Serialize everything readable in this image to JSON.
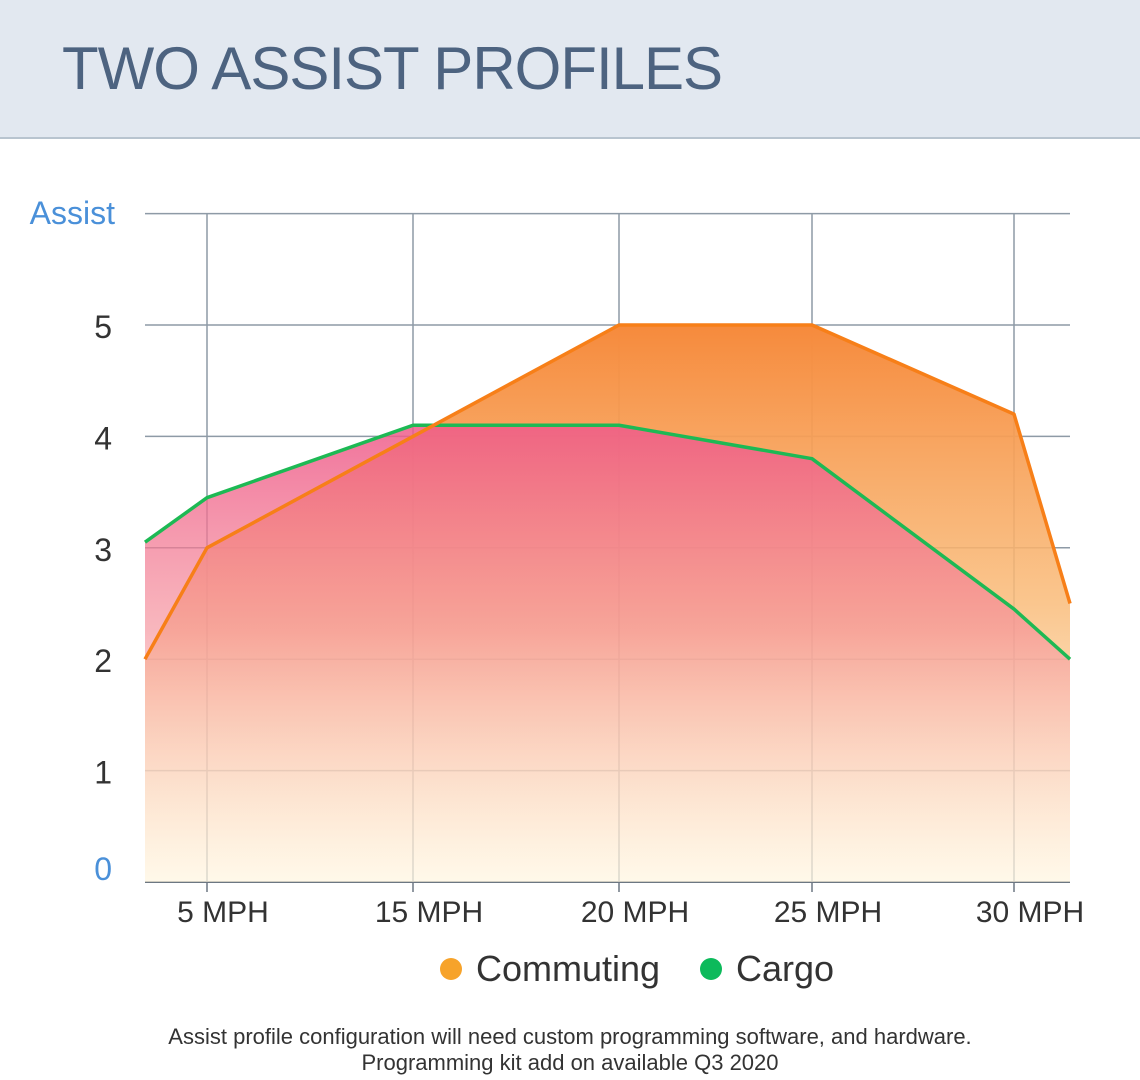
{
  "header": {
    "title": "TWO ASSIST PROFILES"
  },
  "chart_data": {
    "type": "area",
    "ylabel": "Assist",
    "ylim": [
      0,
      6
    ],
    "y_ticks": [
      0,
      1,
      2,
      3,
      4,
      5
    ],
    "x_ticks": [
      "5 MPH",
      "15 MPH",
      "20 MPH",
      "25 MPH",
      "30 MPH"
    ],
    "x": [
      0,
      5,
      15,
      20,
      25,
      30,
      32
    ],
    "grid": true,
    "legend_position": "bottom",
    "series": [
      {
        "name": "Commuting",
        "color": "#f77f18",
        "dot_color": "#f7a32a",
        "values": [
          2.0,
          3.0,
          4.0,
          5.0,
          5.0,
          4.2,
          2.5
        ]
      },
      {
        "name": "Cargo",
        "color": "#1db954",
        "dot_color": "#0cba5b",
        "values": [
          3.05,
          3.45,
          4.1,
          4.1,
          3.8,
          2.45,
          2.0
        ]
      }
    ],
    "colors": {
      "axis_label": "#4a90d9",
      "zero_tick": "#4a90d9"
    }
  },
  "footnote": {
    "line1": "Assist profile configuration will need custom programming software, and hardware.",
    "line2": "Programming kit add on available Q3 2020"
  }
}
